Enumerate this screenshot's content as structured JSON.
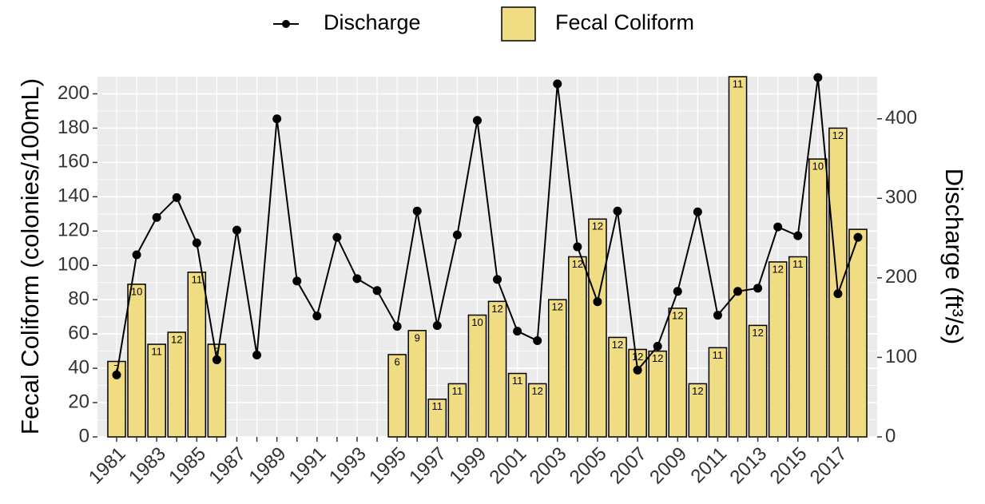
{
  "chart_data": {
    "type": "bar-line",
    "categories": [
      "1981",
      null,
      "1983",
      null,
      "1985",
      null,
      "1987",
      null,
      "1989",
      null,
      "1991",
      null,
      "1993",
      null,
      "1995",
      null,
      "1997",
      null,
      "1999",
      null,
      "2001",
      null,
      "2003",
      null,
      "2005",
      null,
      "2007",
      null,
      "2009",
      null,
      "2011",
      null,
      "2013",
      null,
      "2015",
      null,
      "2017",
      null
    ],
    "series": [
      {
        "name": "Fecal Coliform",
        "type": "bar",
        "color": "#f0dc82",
        "axis": "y",
        "values": [
          44,
          89,
          54,
          61,
          96,
          54,
          null,
          null,
          null,
          null,
          null,
          null,
          null,
          null,
          48,
          62,
          22,
          31,
          71,
          79,
          37,
          31,
          80,
          105,
          127,
          58,
          51,
          50,
          75,
          31,
          52,
          210,
          65,
          102,
          105,
          162,
          180,
          121
        ],
        "counts": [
          7,
          10,
          11,
          12,
          11,
          7,
          null,
          null,
          null,
          null,
          null,
          null,
          null,
          null,
          6,
          9,
          11,
          11,
          10,
          12,
          11,
          12,
          12,
          12,
          12,
          12,
          12,
          12,
          12,
          12,
          11,
          11,
          12,
          12,
          11,
          10,
          12,
          null
        ]
      },
      {
        "name": "Discharge",
        "type": "line",
        "color": "#000000",
        "axis": "y2",
        "values": [
          78,
          229,
          276,
          301,
          244,
          97,
          260,
          103,
          400,
          196,
          152,
          251,
          199,
          184,
          139,
          284,
          140,
          254,
          398,
          198,
          133,
          121,
          444,
          239,
          170,
          284,
          84,
          114,
          183,
          283,
          153,
          183,
          187,
          264,
          253,
          452,
          180,
          251
        ]
      }
    ],
    "ylabel": "Fecal Coliform (colonies/100mL)",
    "y2label": "Discharge (ft³/s)",
    "ylim": [
      0,
      210
    ],
    "yticks": [
      0,
      20,
      40,
      60,
      80,
      100,
      120,
      140,
      160,
      180,
      200
    ],
    "y2lim": [
      0,
      453
    ],
    "y2ticks": [
      0,
      100,
      200,
      300,
      400
    ],
    "grid": true,
    "minor_grid": true,
    "legend": "top"
  }
}
